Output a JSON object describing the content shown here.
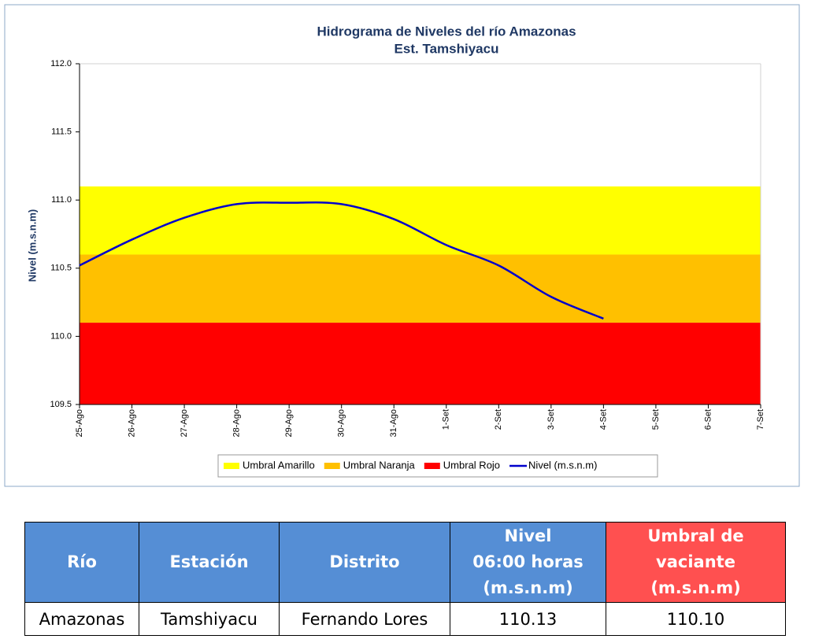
{
  "chart_data": {
    "type": "line",
    "title": "Hidrograma de Niveles del río Amazonas",
    "subtitle": "Est. Tamshiyacu",
    "y_label": "Nivel (m.s.n.m)",
    "categories": [
      "25-Ago",
      "26-Ago",
      "27-Ago",
      "28-Ago",
      "29-Ago",
      "30-Ago",
      "31-Ago",
      "1-Set",
      "2-Set",
      "3-Set",
      "4-Set",
      "5-Set",
      "6-Set",
      "7-Set"
    ],
    "bands": [
      {
        "name": "Umbral Amarillo",
        "color": "#ffff00",
        "from": 110.6,
        "to": 111.1
      },
      {
        "name": "Umbral Naranja",
        "color": "#ffc000",
        "from": 110.1,
        "to": 110.6
      },
      {
        "name": "Umbral Rojo",
        "color": "#ff0000",
        "from": 109.5,
        "to": 110.1
      }
    ],
    "series": [
      {
        "name": "Nivel (m.s.n.m)",
        "color": "#0000cc",
        "values": [
          110.52,
          110.71,
          110.87,
          110.97,
          110.98,
          110.97,
          110.86,
          110.67,
          110.52,
          110.29,
          110.13,
          null,
          null,
          null
        ]
      }
    ],
    "ylim": [
      109.5,
      112
    ],
    "yticks": [
      {
        "value": 112,
        "label": "112.0"
      },
      111.5,
      {
        "value": 111,
        "label": "111.0"
      },
      110.5,
      {
        "value": 110,
        "label": "110.0"
      },
      109.5
    ],
    "grid": false,
    "legend": "bottom"
  },
  "table": {
    "header": [
      {
        "lines": [
          "Río"
        ]
      },
      {
        "lines": [
          "Estación"
        ]
      },
      {
        "lines": [
          "Distrito"
        ]
      },
      {
        "lines": [
          "Nivel",
          "06:00 horas",
          "(m.s.n.m)"
        ]
      },
      {
        "lines": [
          "Umbral de",
          "vaciante",
          "(m.s.n.m)"
        ]
      }
    ],
    "rows": [
      [
        "Amazonas",
        "Tamshiyacu",
        "Fernando Lores",
        "110.13",
        "110.10"
      ]
    ]
  }
}
